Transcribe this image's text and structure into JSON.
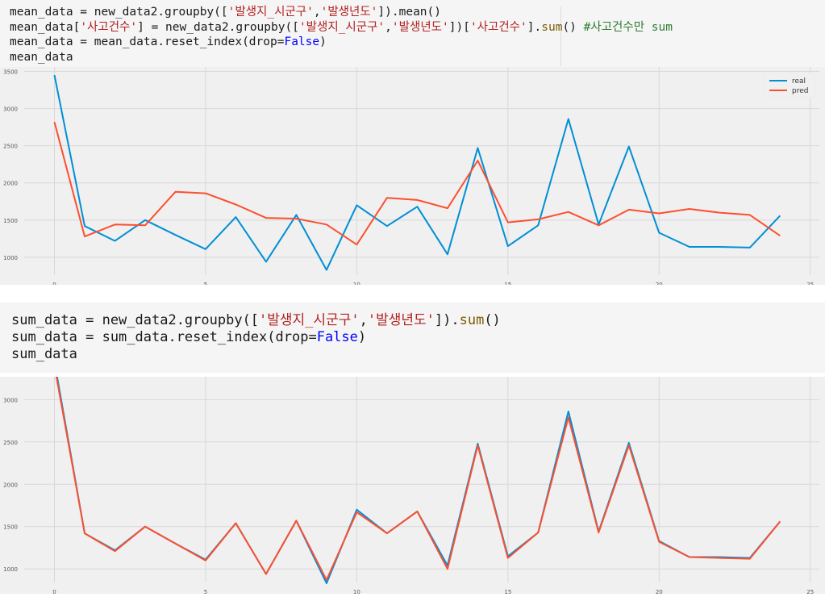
{
  "cell1": {
    "lines": [
      [
        {
          "t": "mean_data = new_data2.groupby([",
          "c": ""
        },
        {
          "t": "'발생지_시군구'",
          "c": "str"
        },
        {
          "t": ",",
          "c": ""
        },
        {
          "t": "'발생년도'",
          "c": "str"
        },
        {
          "t": "]).mean()",
          "c": ""
        }
      ],
      [
        {
          "t": "mean_data[",
          "c": ""
        },
        {
          "t": "'사고건수'",
          "c": "str"
        },
        {
          "t": "] = new_data2.groupby([",
          "c": ""
        },
        {
          "t": "'발생지_시군구'",
          "c": "str"
        },
        {
          "t": ",",
          "c": ""
        },
        {
          "t": "'발생년도'",
          "c": "str"
        },
        {
          "t": "])[",
          "c": ""
        },
        {
          "t": "'사고건수'",
          "c": "str"
        },
        {
          "t": "].",
          "c": ""
        },
        {
          "t": "sum",
          "c": "fn"
        },
        {
          "t": "() ",
          "c": ""
        },
        {
          "t": "#사고건수만 sum",
          "c": "cm"
        }
      ],
      [
        {
          "t": "mean_data = mean_data.reset_index(drop=",
          "c": ""
        },
        {
          "t": "False",
          "c": "kw"
        },
        {
          "t": ")",
          "c": ""
        }
      ],
      [
        {
          "t": "mean_data",
          "c": ""
        }
      ]
    ]
  },
  "cell2": {
    "lines": [
      [
        {
          "t": "sum_data = new_data2.groupby([",
          "c": ""
        },
        {
          "t": "'발생지_시군구'",
          "c": "str"
        },
        {
          "t": ",",
          "c": ""
        },
        {
          "t": "'발생년도'",
          "c": "str"
        },
        {
          "t": "]).",
          "c": ""
        },
        {
          "t": "sum",
          "c": "fn"
        },
        {
          "t": "()",
          "c": ""
        }
      ],
      [
        {
          "t": "sum_data = sum_data.reset_index(drop=",
          "c": ""
        },
        {
          "t": "False",
          "c": "kw"
        },
        {
          "t": ")",
          "c": ""
        }
      ],
      [
        {
          "t": "sum_data",
          "c": ""
        }
      ]
    ]
  },
  "colors": {
    "code_background": "#f5f5f5",
    "plot_background": "#f0f0f0",
    "grid": "#d8d8d8",
    "real": "#008fd5",
    "pred": "#fc4f30",
    "string": "#b22222",
    "function": "#7a5a00",
    "keyword": "#0000ff",
    "comment": "#2e7d32"
  },
  "chart_data": [
    {
      "type": "line",
      "title": "",
      "xlabel": "",
      "ylabel": "",
      "grid": true,
      "legend_placement": "top-right",
      "xlim": [
        -1,
        25.3
      ],
      "ylim": [
        760,
        3560
      ],
      "xticks": [
        0,
        5,
        10,
        15,
        20,
        25
      ],
      "yticks": [
        1000,
        1500,
        2000,
        2500,
        3000,
        3500
      ],
      "x": [
        0,
        1,
        2,
        3,
        4,
        5,
        6,
        7,
        8,
        9,
        10,
        11,
        12,
        13,
        14,
        15,
        16,
        17,
        18,
        19,
        20,
        21,
        22,
        23,
        24
      ],
      "series": [
        {
          "name": "real",
          "color_key": "real",
          "values": [
            3450,
            1420,
            1220,
            1500,
            1300,
            1110,
            1540,
            940,
            1570,
            830,
            1700,
            1420,
            1680,
            1040,
            2470,
            1150,
            1430,
            2860,
            1440,
            2490,
            1330,
            1140,
            1140,
            1130,
            1560
          ]
        },
        {
          "name": "pred",
          "color_key": "pred",
          "values": [
            2820,
            1280,
            1440,
            1430,
            1880,
            1860,
            1710,
            1530,
            1520,
            1440,
            1170,
            1800,
            1770,
            1660,
            2300,
            1470,
            1510,
            1610,
            1430,
            1640,
            1590,
            1650,
            1600,
            1570,
            1290
          ]
        }
      ]
    },
    {
      "type": "line",
      "title": "",
      "xlabel": "",
      "ylabel": "",
      "grid": true,
      "xlim": [
        -1,
        25.3
      ],
      "ylim": [
        840,
        3270
      ],
      "xticks": [
        0,
        5,
        10,
        15,
        20,
        25
      ],
      "yticks": [
        1000,
        1500,
        2000,
        2500,
        3000
      ],
      "x": [
        0,
        1,
        2,
        3,
        4,
        5,
        6,
        7,
        8,
        9,
        10,
        11,
        12,
        13,
        14,
        15,
        16,
        17,
        18,
        19,
        20,
        21,
        22,
        23,
        24
      ],
      "series": [
        {
          "color_key": "real",
          "values": [
            3450,
            1420,
            1220,
            1500,
            1300,
            1110,
            1540,
            940,
            1570,
            830,
            1700,
            1420,
            1680,
            1040,
            2480,
            1150,
            1430,
            2860,
            1440,
            2490,
            1330,
            1140,
            1140,
            1130,
            1560
          ]
        },
        {
          "color_key": "pred",
          "values": [
            3400,
            1420,
            1210,
            1500,
            1300,
            1100,
            1540,
            940,
            1570,
            870,
            1670,
            1420,
            1680,
            1000,
            2460,
            1130,
            1430,
            2790,
            1430,
            2460,
            1320,
            1140,
            1130,
            1120,
            1560
          ]
        }
      ]
    }
  ]
}
